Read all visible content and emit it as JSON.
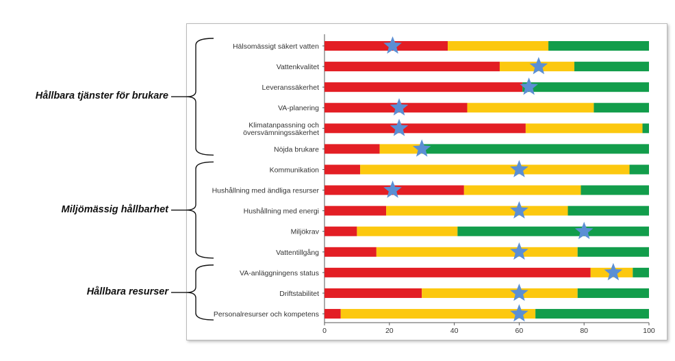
{
  "groups": [
    {
      "label": "Hållbara tjänster för brukare",
      "first": 0,
      "last": 5
    },
    {
      "label": "Miljömässig hållbarhet",
      "first": 6,
      "last": 10
    },
    {
      "label": "Hållbara resurser",
      "first": 11,
      "last": 13
    }
  ],
  "chart_data": {
    "type": "bar",
    "orientation": "horizontal",
    "stacked": true,
    "categories": [
      [
        "Hälsomässigt säkert vatten"
      ],
      [
        "Vattenkvalitet"
      ],
      [
        "Leveranssäkerhet"
      ],
      [
        "VA-planering"
      ],
      [
        "Klimatanpassning och",
        "översvämningssäkerhet"
      ],
      [
        "Nöjda brukare"
      ],
      [
        "Kommunikation"
      ],
      [
        "Hushållning med ändliga resurser"
      ],
      [
        "Hushållning med energi"
      ],
      [
        "Miljökrav"
      ],
      [
        "Vattentillgång"
      ],
      [
        "VA-anläggningens status"
      ],
      [
        "Driftstabilitet"
      ],
      [
        "Personalresurser och kompetens"
      ]
    ],
    "series": [
      {
        "color": "#e31e24",
        "values": [
          38,
          54,
          61,
          44,
          62,
          17,
          11,
          43,
          19,
          10,
          16,
          82,
          30,
          5
        ]
      },
      {
        "color": "#fcc80f",
        "values": [
          31,
          23,
          0,
          39,
          36,
          13,
          83,
          36,
          56,
          31,
          62,
          13,
          48,
          60
        ]
      },
      {
        "color": "#129d4b",
        "values": [
          31,
          23,
          39,
          17,
          2,
          70,
          6,
          21,
          25,
          59,
          22,
          5,
          22,
          35
        ]
      }
    ],
    "stars": [
      21,
      66,
      63,
      23,
      23,
      30,
      60,
      21,
      60,
      80,
      60,
      89,
      60,
      60
    ],
    "star_color": "#5b8fd4",
    "xlim": [
      0,
      100
    ],
    "xticks": [
      0,
      20,
      40,
      60,
      80,
      100
    ],
    "grid": false,
    "legend": "none"
  }
}
